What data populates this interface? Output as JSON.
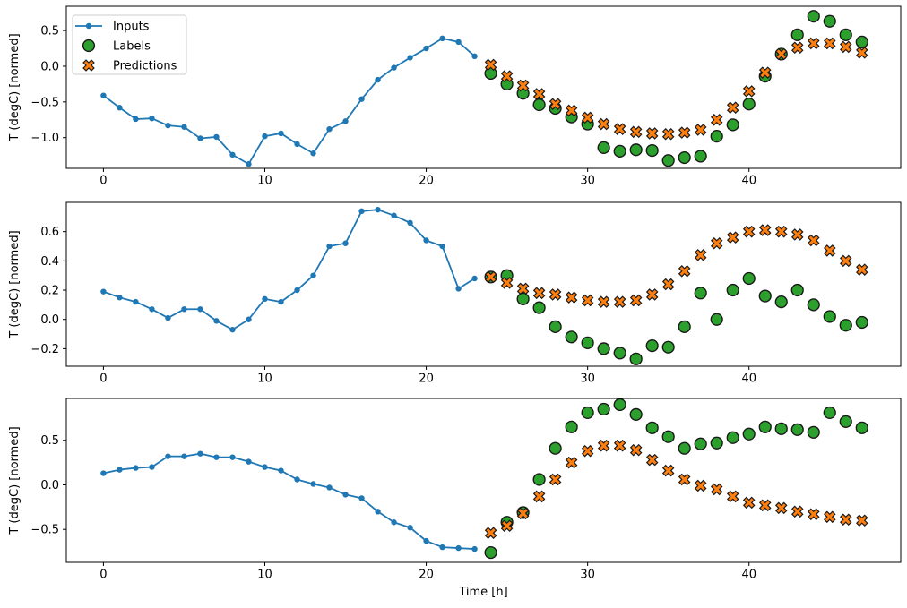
{
  "figure": {
    "xlabel": "Time [h]",
    "ylabel": "T (degC) [normed]",
    "background": "#ffffff",
    "colors": {
      "inputs": "#1f77b4",
      "labels": "#2ca02c",
      "predictions": "#ff7f0e",
      "marker_edge": "#1a1a1a",
      "frame": "#000000",
      "legend_border": "#cccccc",
      "legend_background": "#ffffff"
    },
    "legend": {
      "position": "upper-left",
      "entries": [
        {
          "label": "Inputs",
          "marker": "line-dot",
          "color": "#1f77b4"
        },
        {
          "label": "Labels",
          "marker": "circle",
          "color": "#2ca02c"
        },
        {
          "label": "Predictions",
          "marker": "x",
          "color": "#ff7f0e"
        }
      ]
    }
  },
  "chart_data": [
    {
      "type": "line+scatter",
      "title": "",
      "xlabel": "",
      "ylabel": "T (degC) [normed]",
      "grid": false,
      "xlim": [
        -2.3,
        49.4
      ],
      "ylim": [
        -1.43,
        0.84
      ],
      "xticks": [
        0,
        10,
        20,
        30,
        40
      ],
      "xtick_labels": [
        "0",
        "10",
        "20",
        "30",
        "40"
      ],
      "yticks": [
        0.5,
        0.0,
        -0.5,
        -1.0
      ],
      "ytick_labels": [
        "0.5",
        "0.0",
        "−0.5",
        "−1.0"
      ],
      "series": [
        {
          "name": "Inputs",
          "marker": "line-dot",
          "color": "#1f77b4",
          "x": [
            0,
            1,
            2,
            3,
            4,
            5,
            6,
            7,
            8,
            9,
            10,
            11,
            12,
            13,
            14,
            15,
            16,
            17,
            18,
            19,
            20,
            21,
            22,
            23
          ],
          "y": [
            -0.41,
            -0.58,
            -0.74,
            -0.73,
            -0.83,
            -0.85,
            -1.01,
            -0.99,
            -1.24,
            -1.37,
            -0.98,
            -0.94,
            -1.09,
            -1.22,
            -0.88,
            -0.77,
            -0.46,
            -0.19,
            -0.02,
            0.12,
            0.25,
            0.39,
            0.34,
            0.14
          ]
        },
        {
          "name": "Labels",
          "marker": "circle",
          "color": "#2ca02c",
          "x": [
            24,
            25,
            26,
            27,
            28,
            29,
            30,
            31,
            32,
            33,
            34,
            35,
            36,
            37,
            38,
            39,
            40,
            41,
            42,
            43,
            44,
            45,
            46,
            47
          ],
          "y": [
            -0.1,
            -0.25,
            -0.38,
            -0.54,
            -0.59,
            -0.71,
            -0.81,
            -1.14,
            -1.19,
            -1.17,
            -1.18,
            -1.32,
            -1.28,
            -1.26,
            -0.98,
            -0.82,
            -0.53,
            -0.14,
            0.17,
            0.44,
            0.7,
            0.63,
            0.44,
            0.34
          ]
        },
        {
          "name": "Predictions",
          "marker": "x",
          "color": "#ff7f0e",
          "x": [
            24,
            25,
            26,
            27,
            28,
            29,
            30,
            31,
            32,
            33,
            34,
            35,
            36,
            37,
            38,
            39,
            40,
            41,
            42,
            43,
            44,
            45,
            46,
            47
          ],
          "y": [
            0.02,
            -0.14,
            -0.27,
            -0.39,
            -0.53,
            -0.62,
            -0.72,
            -0.81,
            -0.88,
            -0.92,
            -0.94,
            -0.95,
            -0.93,
            -0.89,
            -0.75,
            -0.58,
            -0.35,
            -0.09,
            0.17,
            0.26,
            0.32,
            0.32,
            0.27,
            0.19
          ]
        }
      ]
    },
    {
      "type": "line+scatter",
      "title": "",
      "xlabel": "",
      "ylabel": "T (degC) [normed]",
      "grid": false,
      "xlim": [
        -2.3,
        49.4
      ],
      "ylim": [
        -0.32,
        0.8
      ],
      "xticks": [
        0,
        10,
        20,
        30,
        40
      ],
      "xtick_labels": [
        "0",
        "10",
        "20",
        "30",
        "40"
      ],
      "yticks": [
        0.6,
        0.4,
        0.2,
        0.0,
        -0.2
      ],
      "ytick_labels": [
        "0.6",
        "0.4",
        "0.2",
        "0.0",
        "−0.2"
      ],
      "series": [
        {
          "name": "Inputs",
          "marker": "line-dot",
          "color": "#1f77b4",
          "x": [
            0,
            1,
            2,
            3,
            4,
            5,
            6,
            7,
            8,
            9,
            10,
            11,
            12,
            13,
            14,
            15,
            16,
            17,
            18,
            19,
            20,
            21,
            22,
            23
          ],
          "y": [
            0.19,
            0.15,
            0.12,
            0.07,
            0.01,
            0.07,
            0.07,
            -0.01,
            -0.07,
            0.0,
            0.14,
            0.12,
            0.2,
            0.3,
            0.5,
            0.52,
            0.74,
            0.75,
            0.71,
            0.66,
            0.54,
            0.5,
            0.21,
            0.28
          ]
        },
        {
          "name": "Labels",
          "marker": "circle",
          "color": "#2ca02c",
          "x": [
            24,
            25,
            26,
            27,
            28,
            29,
            30,
            31,
            32,
            33,
            34,
            35,
            36,
            37,
            38,
            39,
            40,
            41,
            42,
            43,
            44,
            45,
            46,
            47
          ],
          "y": [
            0.29,
            0.3,
            0.14,
            0.08,
            -0.05,
            -0.12,
            -0.16,
            -0.2,
            -0.23,
            -0.27,
            -0.18,
            -0.19,
            -0.05,
            0.18,
            0.0,
            0.2,
            0.28,
            0.16,
            0.12,
            0.2,
            0.1,
            0.02,
            -0.04,
            -0.02
          ]
        },
        {
          "name": "Predictions",
          "marker": "x",
          "color": "#ff7f0e",
          "x": [
            24,
            25,
            26,
            27,
            28,
            29,
            30,
            31,
            32,
            33,
            34,
            35,
            36,
            37,
            38,
            39,
            40,
            41,
            42,
            43,
            44,
            45,
            46,
            47
          ],
          "y": [
            0.29,
            0.25,
            0.21,
            0.18,
            0.17,
            0.15,
            0.13,
            0.12,
            0.12,
            0.13,
            0.17,
            0.24,
            0.33,
            0.44,
            0.52,
            0.56,
            0.6,
            0.61,
            0.6,
            0.58,
            0.54,
            0.47,
            0.4,
            0.34
          ]
        }
      ]
    },
    {
      "type": "line+scatter",
      "title": "",
      "xlabel": "Time [h]",
      "ylabel": "T (degC) [normed]",
      "grid": false,
      "xlim": [
        -2.3,
        49.4
      ],
      "ylim": [
        -0.87,
        0.97
      ],
      "xticks": [
        0,
        10,
        20,
        30,
        40
      ],
      "xtick_labels": [
        "0",
        "10",
        "20",
        "30",
        "40"
      ],
      "yticks": [
        0.5,
        0.0,
        -0.5
      ],
      "ytick_labels": [
        "0.5",
        "0.0",
        "−0.5"
      ],
      "series": [
        {
          "name": "Inputs",
          "marker": "line-dot",
          "color": "#1f77b4",
          "x": [
            0,
            1,
            2,
            3,
            4,
            5,
            6,
            7,
            8,
            9,
            10,
            11,
            12,
            13,
            14,
            15,
            16,
            17,
            18,
            19,
            20,
            21,
            22,
            23
          ],
          "y": [
            0.13,
            0.17,
            0.19,
            0.2,
            0.32,
            0.32,
            0.35,
            0.31,
            0.31,
            0.26,
            0.2,
            0.16,
            0.06,
            0.01,
            -0.03,
            -0.11,
            -0.15,
            -0.3,
            -0.42,
            -0.48,
            -0.63,
            -0.7,
            -0.71,
            -0.72
          ]
        },
        {
          "name": "Labels",
          "marker": "circle",
          "color": "#2ca02c",
          "x": [
            24,
            25,
            26,
            27,
            28,
            29,
            30,
            31,
            32,
            33,
            34,
            35,
            36,
            37,
            38,
            39,
            40,
            41,
            42,
            43,
            44,
            45,
            46,
            47
          ],
          "y": [
            -0.76,
            -0.42,
            -0.31,
            0.06,
            0.41,
            0.65,
            0.81,
            0.85,
            0.9,
            0.79,
            0.64,
            0.54,
            0.41,
            0.46,
            0.47,
            0.53,
            0.57,
            0.65,
            0.63,
            0.62,
            0.59,
            0.81,
            0.71,
            0.64
          ]
        },
        {
          "name": "Predictions",
          "marker": "x",
          "color": "#ff7f0e",
          "x": [
            24,
            25,
            26,
            27,
            28,
            29,
            30,
            31,
            32,
            33,
            34,
            35,
            36,
            37,
            38,
            39,
            40,
            41,
            42,
            43,
            44,
            45,
            46,
            47
          ],
          "y": [
            -0.54,
            -0.46,
            -0.32,
            -0.13,
            0.06,
            0.25,
            0.38,
            0.44,
            0.44,
            0.39,
            0.28,
            0.16,
            0.06,
            -0.01,
            -0.05,
            -0.13,
            -0.2,
            -0.23,
            -0.26,
            -0.3,
            -0.33,
            -0.36,
            -0.39,
            -0.4
          ]
        }
      ]
    }
  ]
}
